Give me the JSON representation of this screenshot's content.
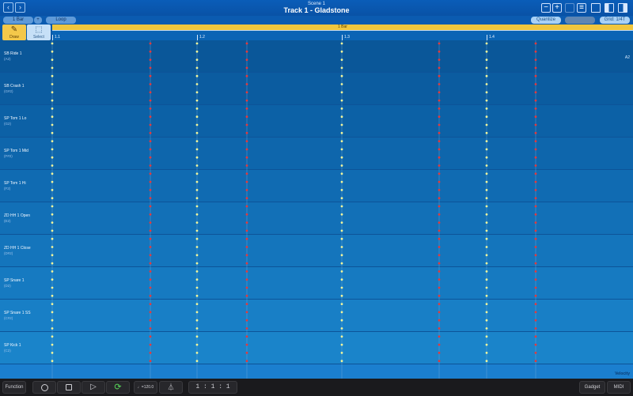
{
  "header": {
    "scene": "Scene 1",
    "track_title": "Track 1 - Gladstone",
    "back_icon": "chevron-left-icon",
    "forward_icon": "chevron-right-icon"
  },
  "toolbar": {
    "length_label": "1 Bar",
    "length_add": "+",
    "loop_label": "Loop",
    "quantize_label": "Quantize",
    "grid_label": "Grid: 1/4T",
    "minus_label": "−",
    "plus_label": "+"
  },
  "tools": {
    "draw": "Draw",
    "select": "Select"
  },
  "loop_region": {
    "label": "1 Bar"
  },
  "ruler": {
    "markers": [
      "1.1",
      "1.2",
      "1.3",
      "1.4"
    ]
  },
  "top_note": "A2",
  "rows": [
    {
      "name": "SB Ride 1",
      "note": "(A2)"
    },
    {
      "name": "SB Crash 1",
      "note": "(G#2)"
    },
    {
      "name": "SP Tom 1 Lo",
      "note": "(G2)"
    },
    {
      "name": "SP Tom 1 Mid",
      "note": "(F#2)"
    },
    {
      "name": "SP Tom 1 Hi",
      "note": "(F2)"
    },
    {
      "name": "ZD HH 1 Open",
      "note": "(E2)"
    },
    {
      "name": "ZD HH 1 Close",
      "note": "(D#2)"
    },
    {
      "name": "SP Snare 1",
      "note": "(D2)"
    },
    {
      "name": "SP Snare 1 SS",
      "note": "(C#2)"
    },
    {
      "name": "SP Kick 1",
      "note": "(C2)"
    }
  ],
  "velocity_label": "Velocity",
  "bottom": {
    "function_label": "Function",
    "tempo": "♩=120.0",
    "position": "1 :   1 :   1",
    "gadget_label": "Gadget",
    "midi_label": "MIDI"
  },
  "colors": {
    "beat_dot": "#f1f59a",
    "offbeat_dot": "#e8383a",
    "loop_bar": "#f0c63d",
    "draw_tool": "#f4c84a"
  }
}
